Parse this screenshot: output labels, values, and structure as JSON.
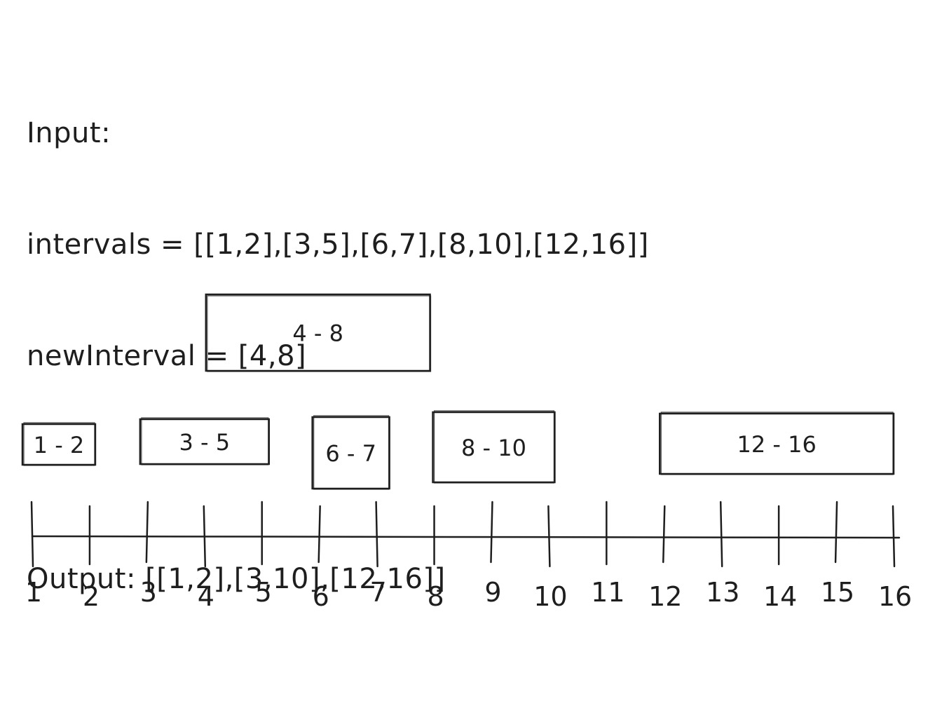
{
  "input": {
    "heading": "Input:",
    "intervals_line": "intervals = [[1,2],[3,5],[6,7],[8,10],[12,16]]",
    "new_interval_line": "newInterval = [4,8]"
  },
  "output": {
    "line": "Output: [[1,2],[3,10],[12,16]]"
  },
  "diagram": {
    "axis_min": 1,
    "axis_max": 16,
    "ticks": [
      {
        "value": 1,
        "label": "1"
      },
      {
        "value": 2,
        "label": "2"
      },
      {
        "value": 3,
        "label": "3"
      },
      {
        "value": 4,
        "label": "4"
      },
      {
        "value": 5,
        "label": "5"
      },
      {
        "value": 6,
        "label": "6"
      },
      {
        "value": 7,
        "label": "7"
      },
      {
        "value": 8,
        "label": "8"
      },
      {
        "value": 9,
        "label": "9"
      },
      {
        "value": 10,
        "label": "10"
      },
      {
        "value": 11,
        "label": "11"
      },
      {
        "value": 12,
        "label": "12"
      },
      {
        "value": 13,
        "label": "13"
      },
      {
        "value": 14,
        "label": "14"
      },
      {
        "value": 15,
        "label": "15"
      },
      {
        "value": 16,
        "label": "16"
      }
    ],
    "intervals": [
      {
        "start": 1,
        "end": 2,
        "label": "1 - 2"
      },
      {
        "start": 3,
        "end": 5,
        "label": "3 - 5"
      },
      {
        "start": 6,
        "end": 7,
        "label": "6 - 7"
      },
      {
        "start": 8,
        "end": 10,
        "label": "8 - 10"
      },
      {
        "start": 12,
        "end": 16,
        "label": "12 - 16"
      }
    ],
    "new_interval": {
      "start": 4,
      "end": 8,
      "label": "4 - 8"
    }
  }
}
